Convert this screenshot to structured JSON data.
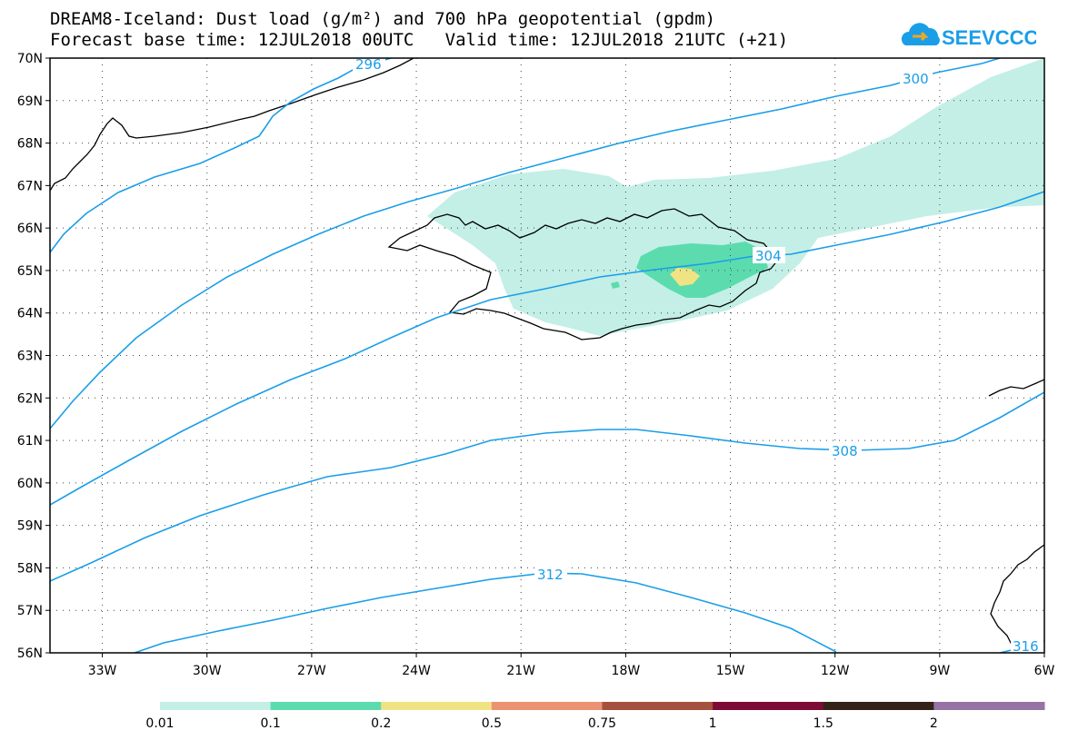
{
  "title": {
    "line1": "DREAM8-Iceland: Dust load (g/m²) and 700 hPa geopotential (gpdm)",
    "line2": "Forecast base time: 12JUL2018 00UTC   Valid time: 12JUL2018 21UTC (+21)"
  },
  "logo": {
    "text": "SEEVCCC",
    "icon": "cloud-arrow-icon",
    "color": "#1a9ee8"
  },
  "map": {
    "lon_range": [
      -34.5,
      -6
    ],
    "lat_range": [
      56,
      70
    ],
    "lon_ticks": [
      "33W",
      "30W",
      "27W",
      "24W",
      "21W",
      "18W",
      "15W",
      "12W",
      "9W",
      "6W"
    ],
    "lat_ticks": [
      "70N",
      "69N",
      "68N",
      "67N",
      "66N",
      "65N",
      "64N",
      "63N",
      "62N",
      "61N",
      "60N",
      "59N",
      "58N",
      "57N",
      "56N"
    ],
    "grid": "dotted"
  },
  "contours": {
    "color": "#1a9ee8",
    "labels": [
      "296",
      "300",
      "304",
      "308",
      "312",
      "316"
    ]
  },
  "dust_colors": {
    "0.01-0.1": "#c3efe6",
    "0.1-0.2": "#5cdcae",
    "0.2-0.5": "#f1e383"
  },
  "colorbar": {
    "colors": [
      "#c3efe6",
      "#5cdcae",
      "#f1e383",
      "#ec9272",
      "#a5513f",
      "#7d0b36",
      "#35231a",
      "#9673a5"
    ],
    "labels": [
      "0.01",
      "0.1",
      "0.2",
      "0.5",
      "0.75",
      "1",
      "1.5",
      "2"
    ]
  }
}
